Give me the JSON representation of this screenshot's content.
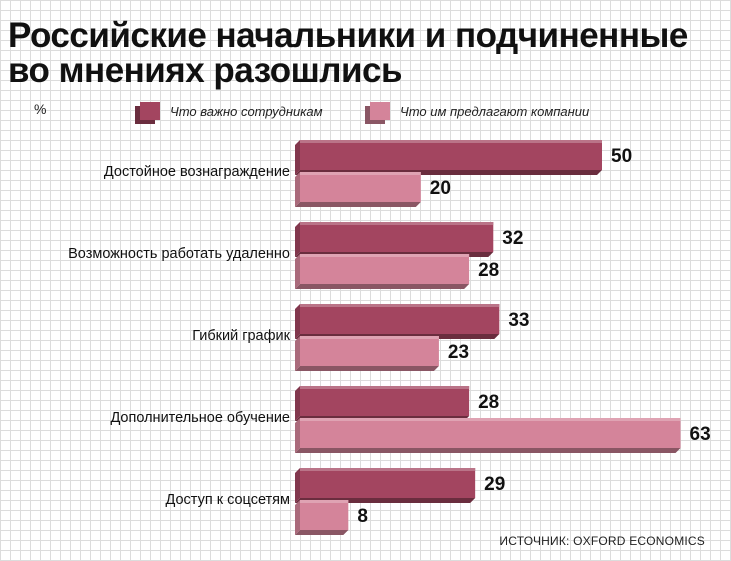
{
  "chart_data": {
    "type": "bar",
    "orientation": "horizontal",
    "title": "Российские начальники и подчиненные во мнениях разошлись",
    "title_lines": [
      "Российские начальники и подчиненные",
      "во мнениях разошлись"
    ],
    "unit": "%",
    "categories": [
      "Достойное вознаграждение",
      "Возможность работать удаленно",
      "Гибкий график",
      "Дополнительное обучение",
      "Доступ к соцсетям"
    ],
    "series": [
      {
        "name": "Что важно сотрудникам",
        "values": [
          50,
          32,
          33,
          28,
          29
        ],
        "color": "#a34560"
      },
      {
        "name": "Что им предлагают компании",
        "values": [
          20,
          28,
          23,
          63,
          8
        ],
        "color": "#d4849a"
      }
    ],
    "xlim": [
      0,
      63
    ],
    "grid": false,
    "legend": "top",
    "source": "ИСТОЧНИК: OXFORD ECONOMICS"
  }
}
